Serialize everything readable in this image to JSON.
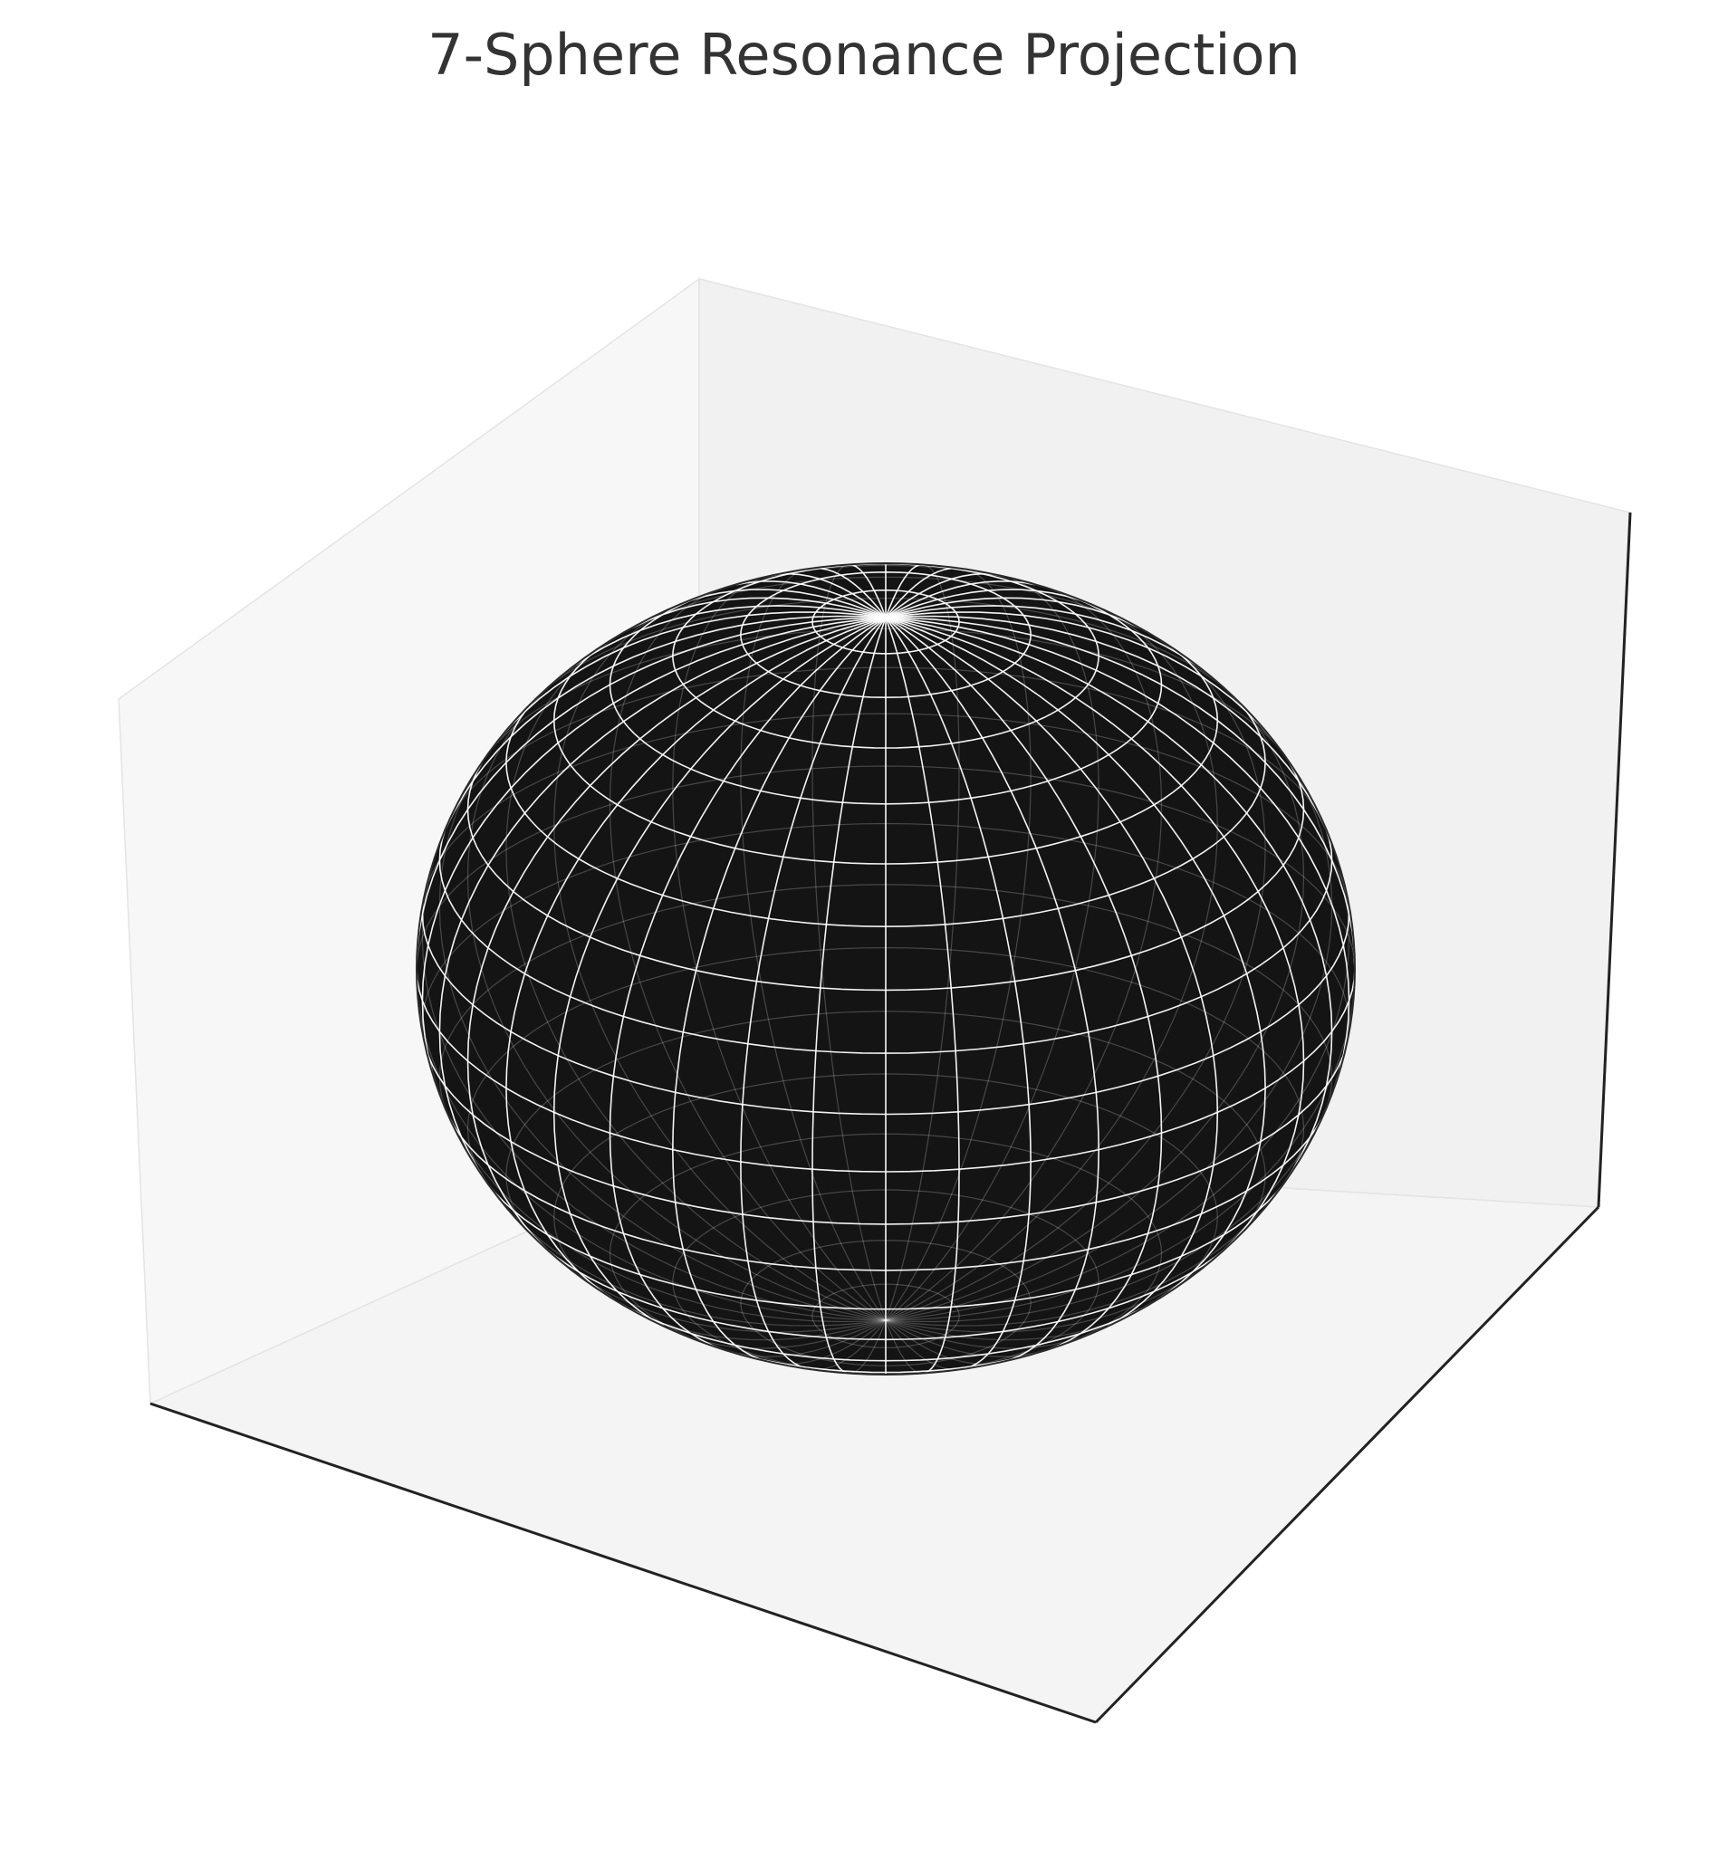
{
  "chart_data": {
    "type": "surface3d",
    "title": "7-Sphere Resonance Projection",
    "xlabel": "",
    "ylabel": "",
    "zlabel": "",
    "tick_labels": "none",
    "grid": false,
    "surface": {
      "shape": "ellipsoid",
      "parameterization": "longitude-latitude",
      "meridians": 40,
      "parallels": 20,
      "face_color": "#141414",
      "edge_color": "#ffffff"
    },
    "view": {
      "elevation_deg": 30,
      "azimuth_deg": -60
    },
    "pane_colors": {
      "left_wall": "#f7f7f7",
      "back_wall": "#f1f1f1",
      "floor": "#f4f4f4"
    },
    "axis_line_color": "#222222"
  }
}
